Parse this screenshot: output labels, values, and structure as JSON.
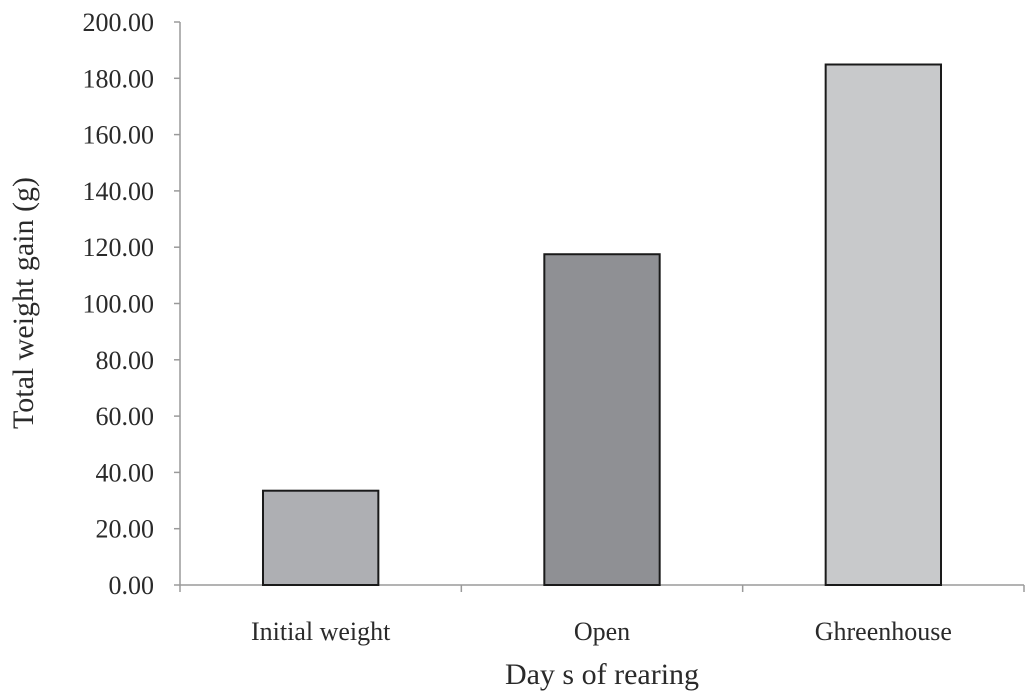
{
  "chart_data": {
    "type": "bar",
    "categories": [
      "Initial weight",
      "Open",
      "Ghreenhouse"
    ],
    "values": [
      33.5,
      117.5,
      184.9
    ],
    "colors": [
      "#aeafb3",
      "#8f9094",
      "#c8c9cb"
    ],
    "xlabel": "Day s of rearing",
    "ylabel": "Total weight gain (g)",
    "ylim": [
      0,
      200
    ],
    "yticks": [
      0,
      20,
      40,
      60,
      80,
      100,
      120,
      140,
      160,
      180,
      200
    ],
    "ytick_labels": [
      "0.00",
      "20.00",
      "40.00",
      "60.00",
      "80.00",
      "100.00",
      "120.00",
      "140.00",
      "160.00",
      "180.00",
      "200.00"
    ],
    "grid": false,
    "legend": "none"
  }
}
